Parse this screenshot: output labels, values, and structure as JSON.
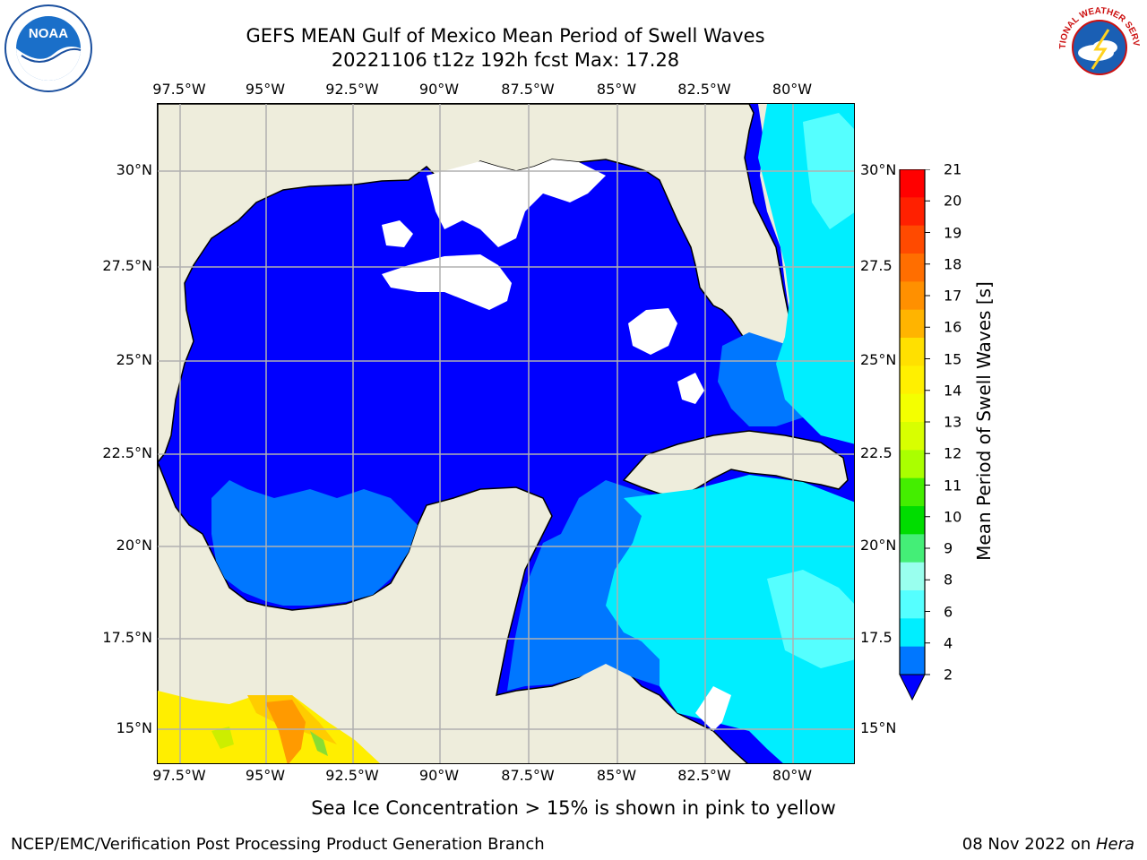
{
  "title": {
    "line1": "GEFS MEAN Gulf of Mexico Mean Period of Swell Waves",
    "line2": "20221106 t12z 192h fcst   Max: 17.28"
  },
  "logos": {
    "left": "noaa-logo",
    "right": "national-weather-service-logo",
    "left_text": "NOAA",
    "right_text": "NATIONAL WEATHER SERVICE"
  },
  "map": {
    "lon_labels": [
      "97.5°W",
      "95°W",
      "92.5°W",
      "90°W",
      "87.5°W",
      "85°W",
      "82.5°W",
      "80°W"
    ],
    "lat_labels_left": [
      "30°N",
      "27.5°N",
      "25°N",
      "22.5°N",
      "20°N",
      "17.5°N",
      "15°N"
    ],
    "lat_labels_right": [
      "30°N",
      "27.5",
      "25°N",
      "22.5",
      "20°N",
      "17.5",
      "15°N"
    ],
    "land_color": "#eeeddc",
    "grid_color": "#b0b0b0"
  },
  "colorbar": {
    "label": "Mean Period of Swell Waves [s]",
    "ticks": [
      "21",
      "20",
      "19",
      "18",
      "17",
      "16",
      "15",
      "14",
      "13",
      "12",
      "11",
      "10",
      "9",
      "8",
      "6",
      "4",
      "2"
    ],
    "colors": [
      "#ff0000",
      "#ff2000",
      "#ff4a00",
      "#ff6e00",
      "#ff9000",
      "#ffb400",
      "#ffe000",
      "#fff000",
      "#f4ff00",
      "#d8ff00",
      "#aaff00",
      "#44ee00",
      "#00dd00",
      "#44ee77",
      "#99ffee",
      "#55ffff",
      "#00eeff",
      "#0077ff",
      "#0000ff"
    ]
  },
  "footnote": "Sea Ice Concentration > 15% is shown in pink to yellow",
  "credits": {
    "left": "NCEP/EMC/Verification Post Processing Product Generation Branch",
    "right_date": "08 Nov 2022 on ",
    "right_machine": "Hera"
  }
}
